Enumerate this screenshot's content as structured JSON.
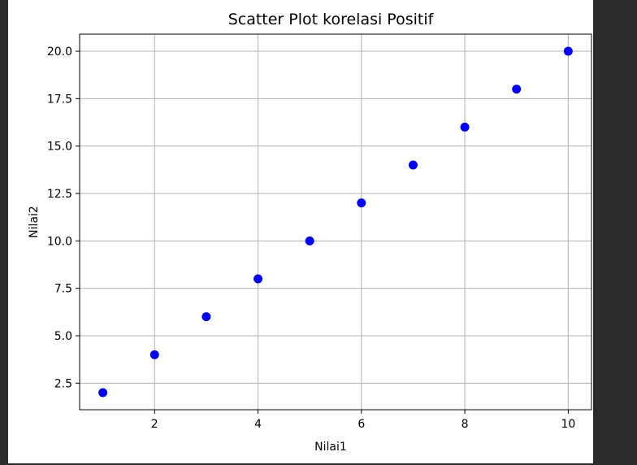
{
  "chart_data": {
    "type": "scatter",
    "title": "Scatter Plot korelasi Positif",
    "xlabel": "Nilai1",
    "ylabel": "Nilai2",
    "x": [
      1,
      2,
      3,
      4,
      5,
      6,
      7,
      8,
      9,
      10
    ],
    "y": [
      2,
      4,
      6,
      8,
      10,
      12,
      14,
      16,
      18,
      20
    ],
    "xlim": [
      0.55,
      10.45
    ],
    "ylim": [
      1.1,
      20.9
    ],
    "x_ticks": [
      2,
      4,
      6,
      8,
      10
    ],
    "x_tick_labels": [
      "2",
      "4",
      "6",
      "8",
      "10"
    ],
    "y_ticks": [
      2.5,
      5.0,
      7.5,
      10.0,
      12.5,
      15.0,
      17.5,
      20.0
    ],
    "y_tick_labels": [
      "2.5",
      "5.0",
      "7.5",
      "10.0",
      "12.5",
      "15.0",
      "17.5",
      "20.0"
    ],
    "grid": true,
    "point_color": "#0000ff"
  }
}
